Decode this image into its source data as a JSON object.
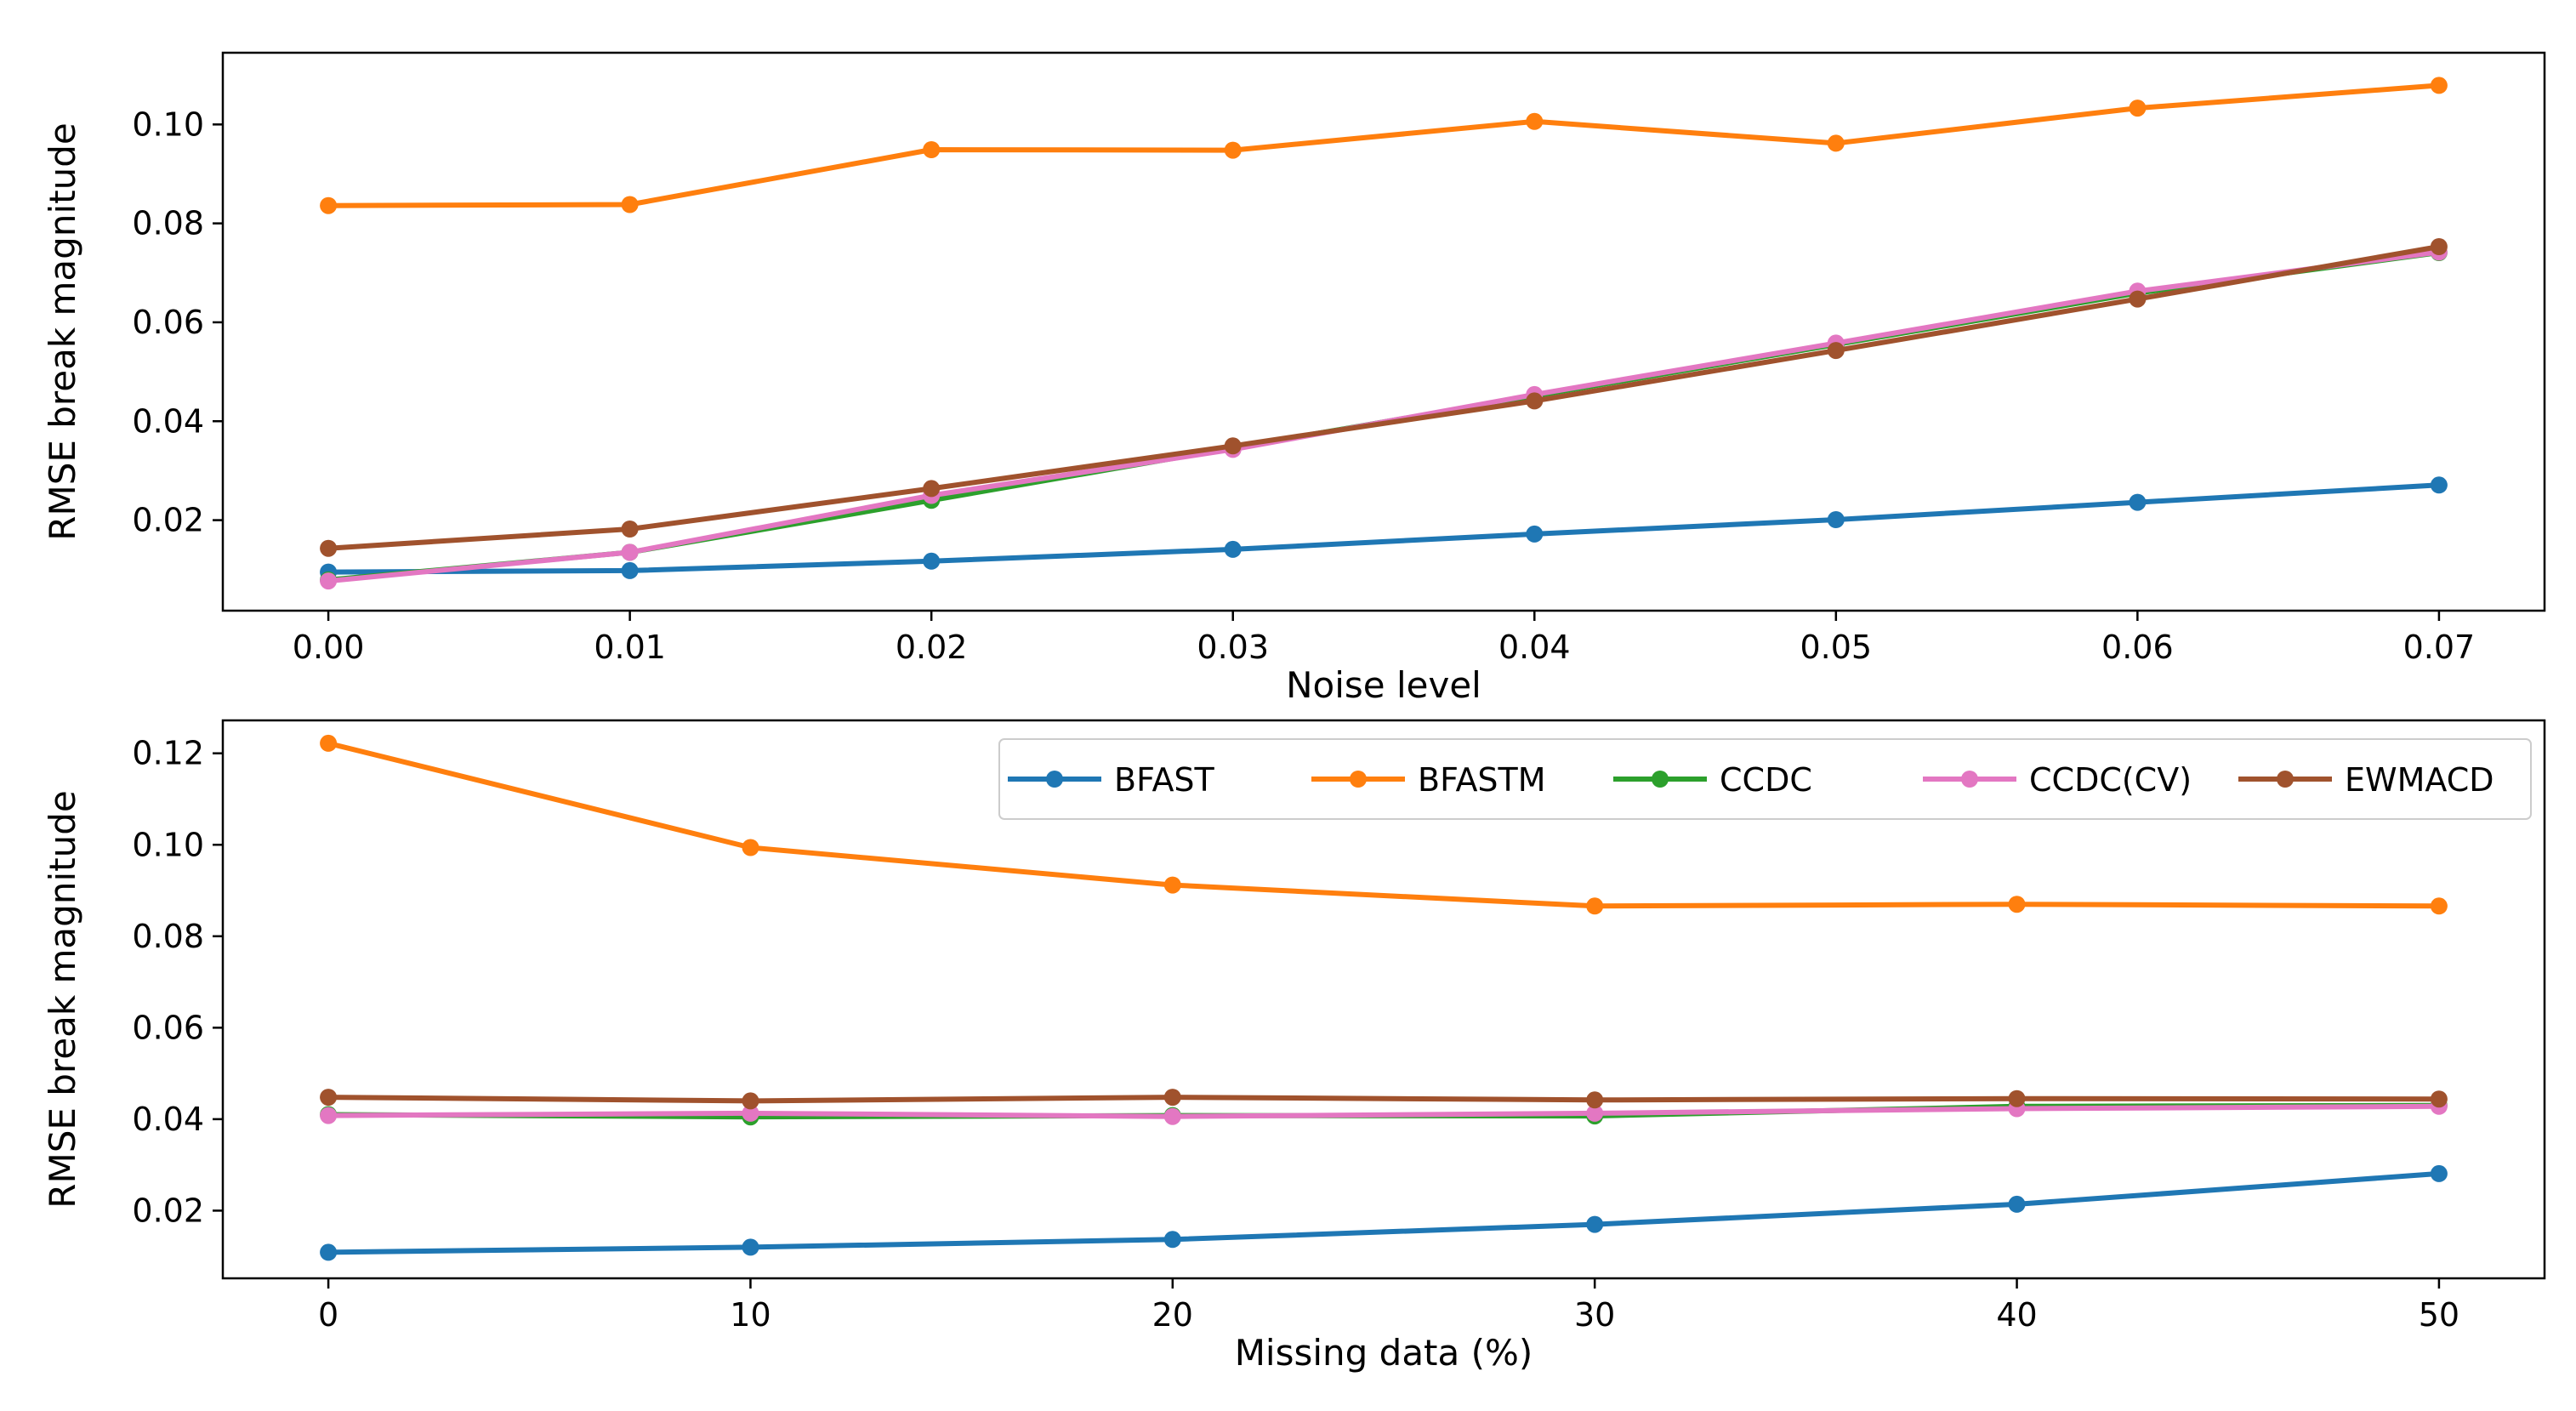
{
  "chart_data": [
    {
      "type": "line",
      "xlabel": "Noise level",
      "ylabel": "RMSE break magnitude",
      "x": [
        0.0,
        0.01,
        0.02,
        0.03,
        0.04,
        0.05,
        0.06,
        0.07
      ],
      "xlim": [
        -0.0035,
        0.0735
      ],
      "ylim": [
        0.0017,
        0.1145
      ],
      "xticks": [
        0.0,
        0.01,
        0.02,
        0.03,
        0.04,
        0.05,
        0.06,
        0.07
      ],
      "xtick_labels": [
        "0.00",
        "0.01",
        "0.02",
        "0.03",
        "0.04",
        "0.05",
        "0.06",
        "0.07"
      ],
      "yticks": [
        0.02,
        0.04,
        0.06,
        0.08,
        0.1
      ],
      "ytick_labels": [
        "0.02",
        "0.04",
        "0.06",
        "0.08",
        "0.10"
      ],
      "series": [
        {
          "name": "BFAST",
          "color": "#1f77b4",
          "values": [
            0.0095,
            0.0098,
            0.0117,
            0.0141,
            0.0172,
            0.0201,
            0.0236,
            0.0271
          ]
        },
        {
          "name": "BFASTM",
          "color": "#ff7f0e",
          "values": [
            0.0836,
            0.0838,
            0.0949,
            0.0948,
            0.1006,
            0.0962,
            0.1033,
            0.1079
          ]
        },
        {
          "name": "CCDC",
          "color": "#2ca02c",
          "values": [
            0.0079,
            0.0135,
            0.024,
            0.0346,
            0.0451,
            0.0555,
            0.0659,
            0.0741
          ]
        },
        {
          "name": "CCDC(CV)",
          "color": "#e377c2",
          "values": [
            0.0077,
            0.0135,
            0.025,
            0.0343,
            0.0454,
            0.0558,
            0.0663,
            0.0742
          ]
        },
        {
          "name": "EWMACD",
          "color": "#a0522d",
          "values": [
            0.0143,
            0.0182,
            0.0264,
            0.035,
            0.0441,
            0.0543,
            0.0647,
            0.0753
          ]
        }
      ]
    },
    {
      "type": "line",
      "xlabel": "Missing data (%)",
      "ylabel": "RMSE break magnitude",
      "x": [
        0,
        10,
        20,
        30,
        40,
        50
      ],
      "xlim": [
        -2.5,
        52.5
      ],
      "ylim": [
        0.0052,
        0.1272
      ],
      "xticks": [
        0,
        10,
        20,
        30,
        40,
        50
      ],
      "xtick_labels": [
        "0",
        "10",
        "20",
        "30",
        "40",
        "50"
      ],
      "yticks": [
        0.02,
        0.04,
        0.06,
        0.08,
        0.1,
        0.12
      ],
      "ytick_labels": [
        "0.02",
        "0.04",
        "0.06",
        "0.08",
        "0.10",
        "0.12"
      ],
      "legend": "top-right",
      "series": [
        {
          "name": "BFAST",
          "color": "#1f77b4",
          "values": [
            0.0109,
            0.012,
            0.0137,
            0.017,
            0.0214,
            0.0281
          ]
        },
        {
          "name": "BFASTM",
          "color": "#ff7f0e",
          "values": [
            0.1222,
            0.0994,
            0.0912,
            0.0866,
            0.087,
            0.0866
          ]
        },
        {
          "name": "CCDC",
          "color": "#2ca02c",
          "values": [
            0.041,
            0.0405,
            0.0408,
            0.0407,
            0.0428,
            0.043
          ]
        },
        {
          "name": "CCDC(CV)",
          "color": "#e377c2",
          "values": [
            0.0408,
            0.0413,
            0.0406,
            0.0413,
            0.0423,
            0.0428
          ]
        },
        {
          "name": "EWMACD",
          "color": "#a0522d",
          "values": [
            0.0448,
            0.044,
            0.0448,
            0.0442,
            0.0445,
            0.0444
          ]
        }
      ]
    }
  ]
}
